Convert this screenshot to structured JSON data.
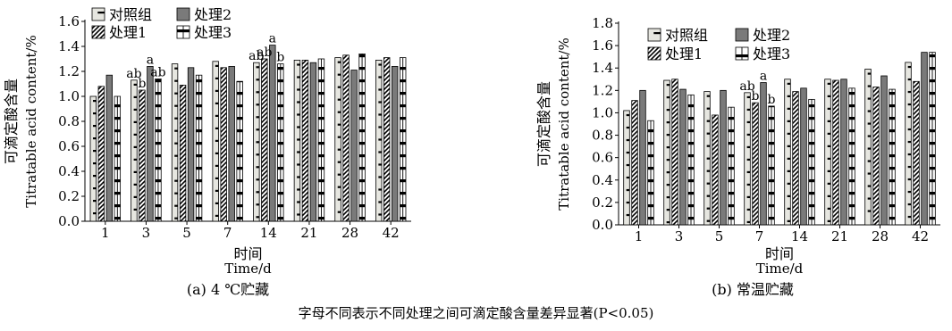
{
  "footnote": "字母不同表示不同处理之间可滴定酸含量差异显著(P<0.05)",
  "chart_data": [
    {
      "type": "bar",
      "caption": "(a) 4 ℃贮藏",
      "ylabel_cn": "可滴定酸含量",
      "ylabel_en": "Titratable acid content/%",
      "xlabel_cn": "时间",
      "xlabel_en": "Time/d",
      "ylim": [
        0,
        1.6
      ],
      "yticks": [
        "0.0",
        "0.2",
        "0.4",
        "0.6",
        "0.8",
        "1.0",
        "1.2",
        "1.4",
        "1.6"
      ],
      "categories": [
        "1",
        "3",
        "5",
        "7",
        "14",
        "21",
        "28",
        "42"
      ],
      "legend_position": "top-left",
      "series": [
        {
          "name": "对照组",
          "values": [
            1.0,
            1.13,
            1.26,
            1.28,
            1.27,
            1.29,
            1.31,
            1.29
          ]
        },
        {
          "name": "处理1",
          "values": [
            1.08,
            1.05,
            1.09,
            1.23,
            1.3,
            1.29,
            1.33,
            1.31
          ]
        },
        {
          "name": "处理2",
          "values": [
            1.17,
            1.24,
            1.23,
            1.24,
            1.41,
            1.27,
            1.21,
            1.24
          ]
        },
        {
          "name": "处理3",
          "values": [
            1.0,
            1.14,
            1.17,
            1.12,
            1.26,
            1.3,
            1.34,
            1.31
          ]
        }
      ],
      "annotations": [
        {
          "category": "3",
          "series": 0,
          "text": "ab"
        },
        {
          "category": "3",
          "series": 1,
          "text": "b"
        },
        {
          "category": "3",
          "series": 2,
          "text": "a"
        },
        {
          "category": "3",
          "series": 3,
          "text": "ab"
        },
        {
          "category": "14",
          "series": 0,
          "text": "ab"
        },
        {
          "category": "14",
          "series": 1,
          "text": "ab"
        },
        {
          "category": "14",
          "series": 2,
          "text": "a"
        },
        {
          "category": "14",
          "series": 3,
          "text": "b"
        }
      ]
    },
    {
      "type": "bar",
      "caption": "(b) 常温贮藏",
      "ylabel_cn": "可滴定酸含量",
      "ylabel_en": "Titratable acid content/%",
      "xlabel_cn": "时间",
      "xlabel_en": "Time/d",
      "ylim": [
        0,
        1.8
      ],
      "yticks": [
        "0.0",
        "0.2",
        "0.4",
        "0.6",
        "0.8",
        "1.0",
        "1.2",
        "1.4",
        "1.6",
        "1.8"
      ],
      "categories": [
        "1",
        "3",
        "5",
        "7",
        "14",
        "21",
        "28",
        "42"
      ],
      "legend_position": "top-left",
      "series": [
        {
          "name": "对照组",
          "values": [
            1.02,
            1.29,
            1.19,
            1.18,
            1.3,
            1.3,
            1.39,
            1.45
          ]
        },
        {
          "name": "处理1",
          "values": [
            1.11,
            1.3,
            0.98,
            1.09,
            1.19,
            1.29,
            1.23,
            1.28
          ]
        },
        {
          "name": "处理2",
          "values": [
            1.2,
            1.21,
            1.2,
            1.27,
            1.22,
            1.3,
            1.33,
            1.54
          ]
        },
        {
          "name": "处理3",
          "values": [
            0.93,
            1.16,
            1.05,
            1.06,
            1.12,
            1.22,
            1.21,
            1.54
          ]
        }
      ],
      "annotations": [
        {
          "category": "7",
          "series": 0,
          "text": "ab"
        },
        {
          "category": "7",
          "series": 1,
          "text": "b"
        },
        {
          "category": "7",
          "series": 2,
          "text": "a"
        },
        {
          "category": "7",
          "series": 3,
          "text": "b"
        }
      ]
    }
  ]
}
